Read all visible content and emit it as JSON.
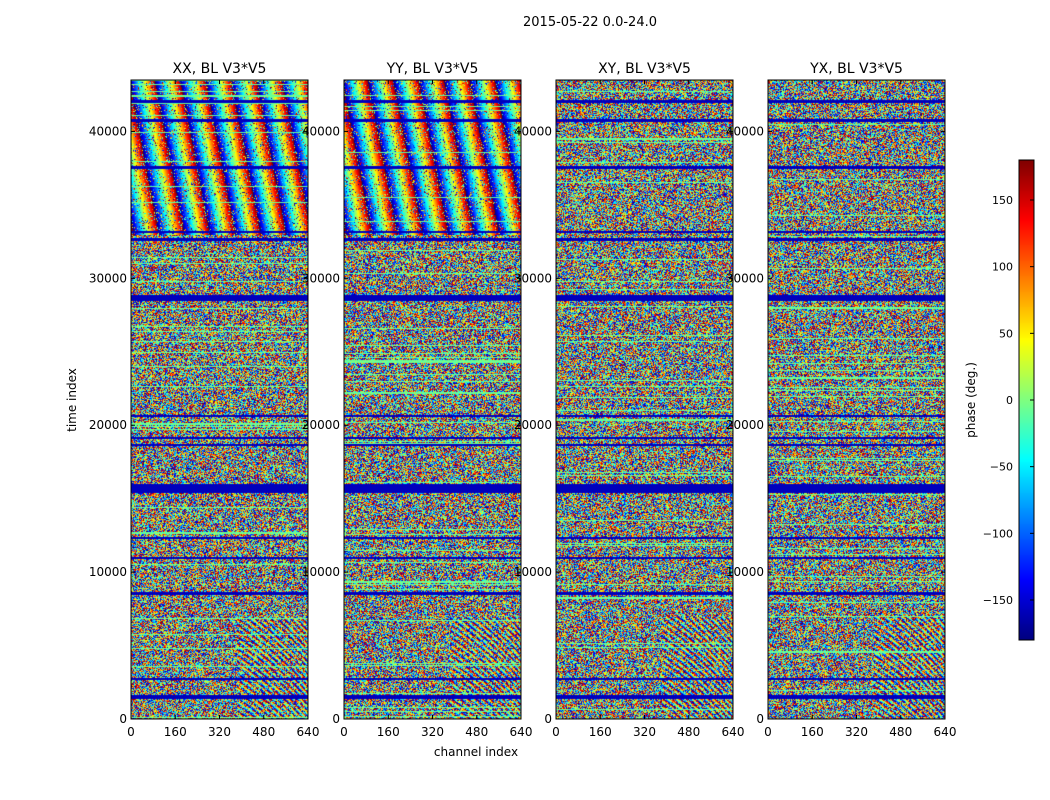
{
  "chart_data": {
    "type": "heatmap",
    "title": "2015-05-22 0.0-24.0",
    "xlabel": "channel index",
    "ylabel": "time index",
    "xlim": [
      0,
      640
    ],
    "ylim": [
      0,
      43500
    ],
    "x_ticks": [
      0,
      160,
      320,
      480,
      640
    ],
    "y_ticks": [
      0,
      10000,
      20000,
      30000,
      40000
    ],
    "panels": [
      {
        "name": "XX",
        "title": "XX, BL V3*V5",
        "fringes": true
      },
      {
        "name": "YY",
        "title": "YY, BL V3*V5",
        "fringes": true
      },
      {
        "name": "XY",
        "title": "XY, BL V3*V5",
        "fringes": false
      },
      {
        "name": "YX",
        "title": "YX, BL V3*V5",
        "fringes": false
      }
    ],
    "colorbar": {
      "label": "phase (deg.)",
      "range": [
        -180,
        180
      ],
      "ticks": [
        -150,
        -100,
        -50,
        0,
        50,
        100,
        150
      ],
      "tick_labels": [
        "−150",
        "−100",
        "−50",
        "0",
        "50",
        "100",
        "150"
      ],
      "colormap": "jet"
    },
    "flagged_time_bands": [
      [
        15400,
        16000
      ],
      [
        28500,
        28900
      ],
      [
        8500,
        8700
      ],
      [
        12300,
        12450
      ],
      [
        10900,
        11050
      ],
      [
        1400,
        1700
      ],
      [
        2700,
        2850
      ],
      [
        32600,
        32800
      ],
      [
        33100,
        33250
      ],
      [
        37500,
        37700
      ],
      [
        40700,
        40900
      ],
      [
        42000,
        42150
      ],
      [
        18600,
        18750
      ],
      [
        19100,
        19250
      ],
      [
        20600,
        20750
      ]
    ]
  }
}
